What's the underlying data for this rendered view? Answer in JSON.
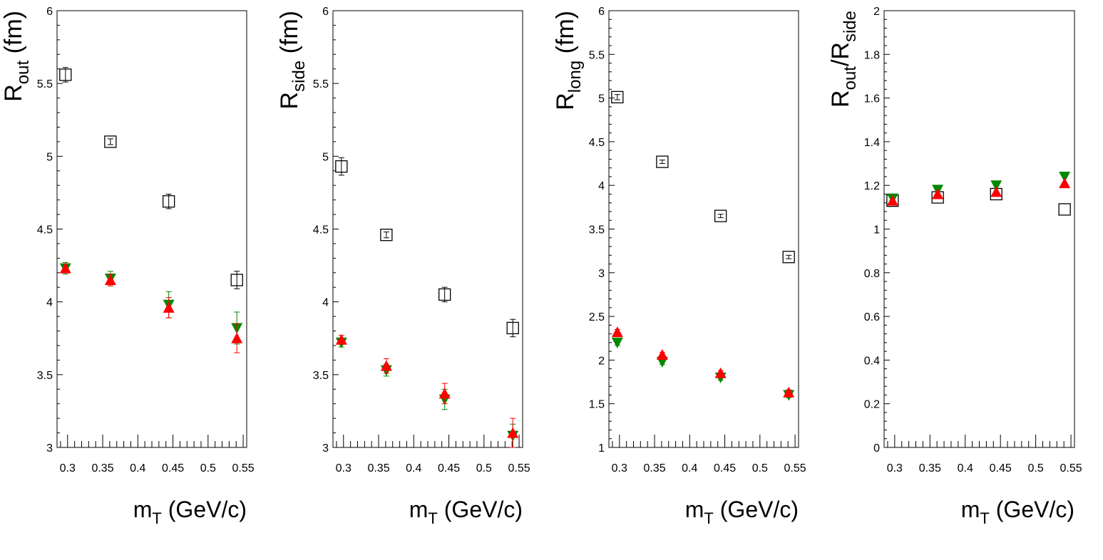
{
  "colors": {
    "data": "#000000",
    "red": "#ff0000",
    "green": "#008800",
    "frame": "#000000"
  },
  "chart_data": [
    {
      "type": "scatter",
      "title": "",
      "ylabel_main": "R",
      "ylabel_sub": "out",
      "ylabel_tail": " (fm)",
      "ylabel_div": "",
      "ylabel_sub2": "",
      "xlabel_main": "m",
      "xlabel_sub": "T",
      "xlabel_tail": " (GeV/c)",
      "xlim": [
        0.285,
        0.555
      ],
      "ylim": [
        3,
        6
      ],
      "x_ticks": [
        "0.3",
        "0.35",
        "0.4",
        "0.45",
        "0.5",
        "0.55"
      ],
      "y_ticks": [
        "3",
        "3.5",
        "4",
        "4.5",
        "5",
        "5.5",
        "6"
      ],
      "series": [
        {
          "name": "open squares",
          "marker": "open-square",
          "color": "#000000",
          "x": [
            0.297,
            0.361,
            0.444,
            0.541
          ],
          "y": [
            5.56,
            5.1,
            4.69,
            4.15
          ],
          "err": [
            0.05,
            0.02,
            0.05,
            0.06
          ]
        },
        {
          "name": "green down triangles",
          "marker": "triangle-down",
          "color": "#008800",
          "x": [
            0.297,
            0.361,
            0.444,
            0.541
          ],
          "y": [
            4.23,
            4.16,
            3.98,
            3.82
          ],
          "err": [
            0.04,
            0.05,
            0.09,
            0.11
          ]
        },
        {
          "name": "red up triangles",
          "marker": "triangle-up",
          "color": "#ff0000",
          "x": [
            0.297,
            0.361,
            0.444,
            0.541
          ],
          "y": [
            4.23,
            4.15,
            3.96,
            3.75
          ],
          "err": [
            0.03,
            0.04,
            0.07,
            0.1
          ]
        }
      ]
    },
    {
      "type": "scatter",
      "title": "",
      "ylabel_main": "R",
      "ylabel_sub": "side",
      "ylabel_tail": " (fm)",
      "ylabel_div": "",
      "ylabel_sub2": "",
      "xlabel_main": "m",
      "xlabel_sub": "T",
      "xlabel_tail": " (GeV/c)",
      "xlim": [
        0.285,
        0.555
      ],
      "ylim": [
        3,
        6
      ],
      "x_ticks": [
        "0.3",
        "0.35",
        "0.4",
        "0.45",
        "0.5",
        "0.55"
      ],
      "y_ticks": [
        "3",
        "3.5",
        "4",
        "4.5",
        "5",
        "5.5",
        "6"
      ],
      "series": [
        {
          "name": "open squares",
          "marker": "open-square",
          "color": "#000000",
          "x": [
            0.297,
            0.361,
            0.444,
            0.541
          ],
          "y": [
            4.93,
            4.46,
            4.05,
            3.82
          ],
          "err": [
            0.06,
            0.02,
            0.05,
            0.06
          ]
        },
        {
          "name": "green down triangles",
          "marker": "triangle-down",
          "color": "#008800",
          "x": [
            0.297,
            0.361,
            0.444,
            0.541
          ],
          "y": [
            3.72,
            3.53,
            3.33,
            3.08
          ],
          "err": [
            0.03,
            0.04,
            0.07,
            0.08
          ]
        },
        {
          "name": "red up triangles",
          "marker": "triangle-up",
          "color": "#ff0000",
          "x": [
            0.297,
            0.361,
            0.444,
            0.541
          ],
          "y": [
            3.74,
            3.56,
            3.37,
            3.1
          ],
          "err": [
            0.03,
            0.05,
            0.07,
            0.1
          ]
        }
      ]
    },
    {
      "type": "scatter",
      "title": "",
      "ylabel_main": "R",
      "ylabel_sub": "long",
      "ylabel_tail": " (fm)",
      "ylabel_div": "",
      "ylabel_sub2": "",
      "xlabel_main": "m",
      "xlabel_sub": "T",
      "xlabel_tail": " (GeV/c)",
      "xlim": [
        0.285,
        0.555
      ],
      "ylim": [
        1,
        6
      ],
      "x_ticks": [
        "0.3",
        "0.35",
        "0.4",
        "0.45",
        "0.5",
        "0.55"
      ],
      "y_ticks": [
        "1",
        "1.5",
        "2",
        "2.5",
        "3",
        "3.5",
        "4",
        "4.5",
        "5",
        "5.5",
        "6"
      ],
      "series": [
        {
          "name": "open squares",
          "marker": "open-square",
          "color": "#000000",
          "x": [
            0.297,
            0.361,
            0.444,
            0.541
          ],
          "y": [
            5.01,
            4.27,
            3.65,
            3.18
          ],
          "err": [
            0.03,
            0.02,
            0.02,
            0.02
          ]
        },
        {
          "name": "green down triangles",
          "marker": "triangle-down",
          "color": "#008800",
          "x": [
            0.297,
            0.361,
            0.444,
            0.541
          ],
          "y": [
            2.2,
            1.98,
            1.8,
            1.6
          ],
          "err": [
            0.03,
            0.03,
            0.03,
            0.03
          ]
        },
        {
          "name": "red up triangles",
          "marker": "triangle-up",
          "color": "#ff0000",
          "x": [
            0.297,
            0.361,
            0.444,
            0.541
          ],
          "y": [
            2.32,
            2.06,
            1.85,
            1.63
          ],
          "err": [
            0.03,
            0.03,
            0.03,
            0.03
          ]
        }
      ]
    },
    {
      "type": "scatter",
      "title": "",
      "ylabel_main": "R",
      "ylabel_sub": "out",
      "ylabel_tail": "",
      "ylabel_div": "/R",
      "ylabel_sub2": "side",
      "xlabel_main": "m",
      "xlabel_sub": "T",
      "xlabel_tail": " (GeV/c)",
      "xlim": [
        0.285,
        0.555
      ],
      "ylim": [
        0,
        2
      ],
      "x_ticks": [
        "0.3",
        "0.35",
        "0.4",
        "0.45",
        "0.5",
        "0.55"
      ],
      "y_ticks": [
        "0",
        "0.2",
        "0.4",
        "0.6",
        "0.8",
        "1",
        "1.2",
        "1.4",
        "1.6",
        "1.8",
        "2"
      ],
      "series": [
        {
          "name": "open squares",
          "marker": "open-square",
          "color": "#000000",
          "x": [
            0.297,
            0.361,
            0.444,
            0.541
          ],
          "y": [
            1.13,
            1.145,
            1.16,
            1.09
          ],
          "err": [
            0,
            0,
            0,
            0
          ]
        },
        {
          "name": "green down triangles",
          "marker": "triangle-down",
          "color": "#008800",
          "x": [
            0.297,
            0.361,
            0.444,
            0.541
          ],
          "y": [
            1.14,
            1.18,
            1.2,
            1.24
          ],
          "err": [
            0,
            0,
            0,
            0
          ]
        },
        {
          "name": "red up triangles",
          "marker": "triangle-up",
          "color": "#ff0000",
          "x": [
            0.297,
            0.361,
            0.444,
            0.541
          ],
          "y": [
            1.13,
            1.16,
            1.17,
            1.21
          ],
          "err": [
            0,
            0,
            0,
            0
          ]
        }
      ]
    }
  ]
}
